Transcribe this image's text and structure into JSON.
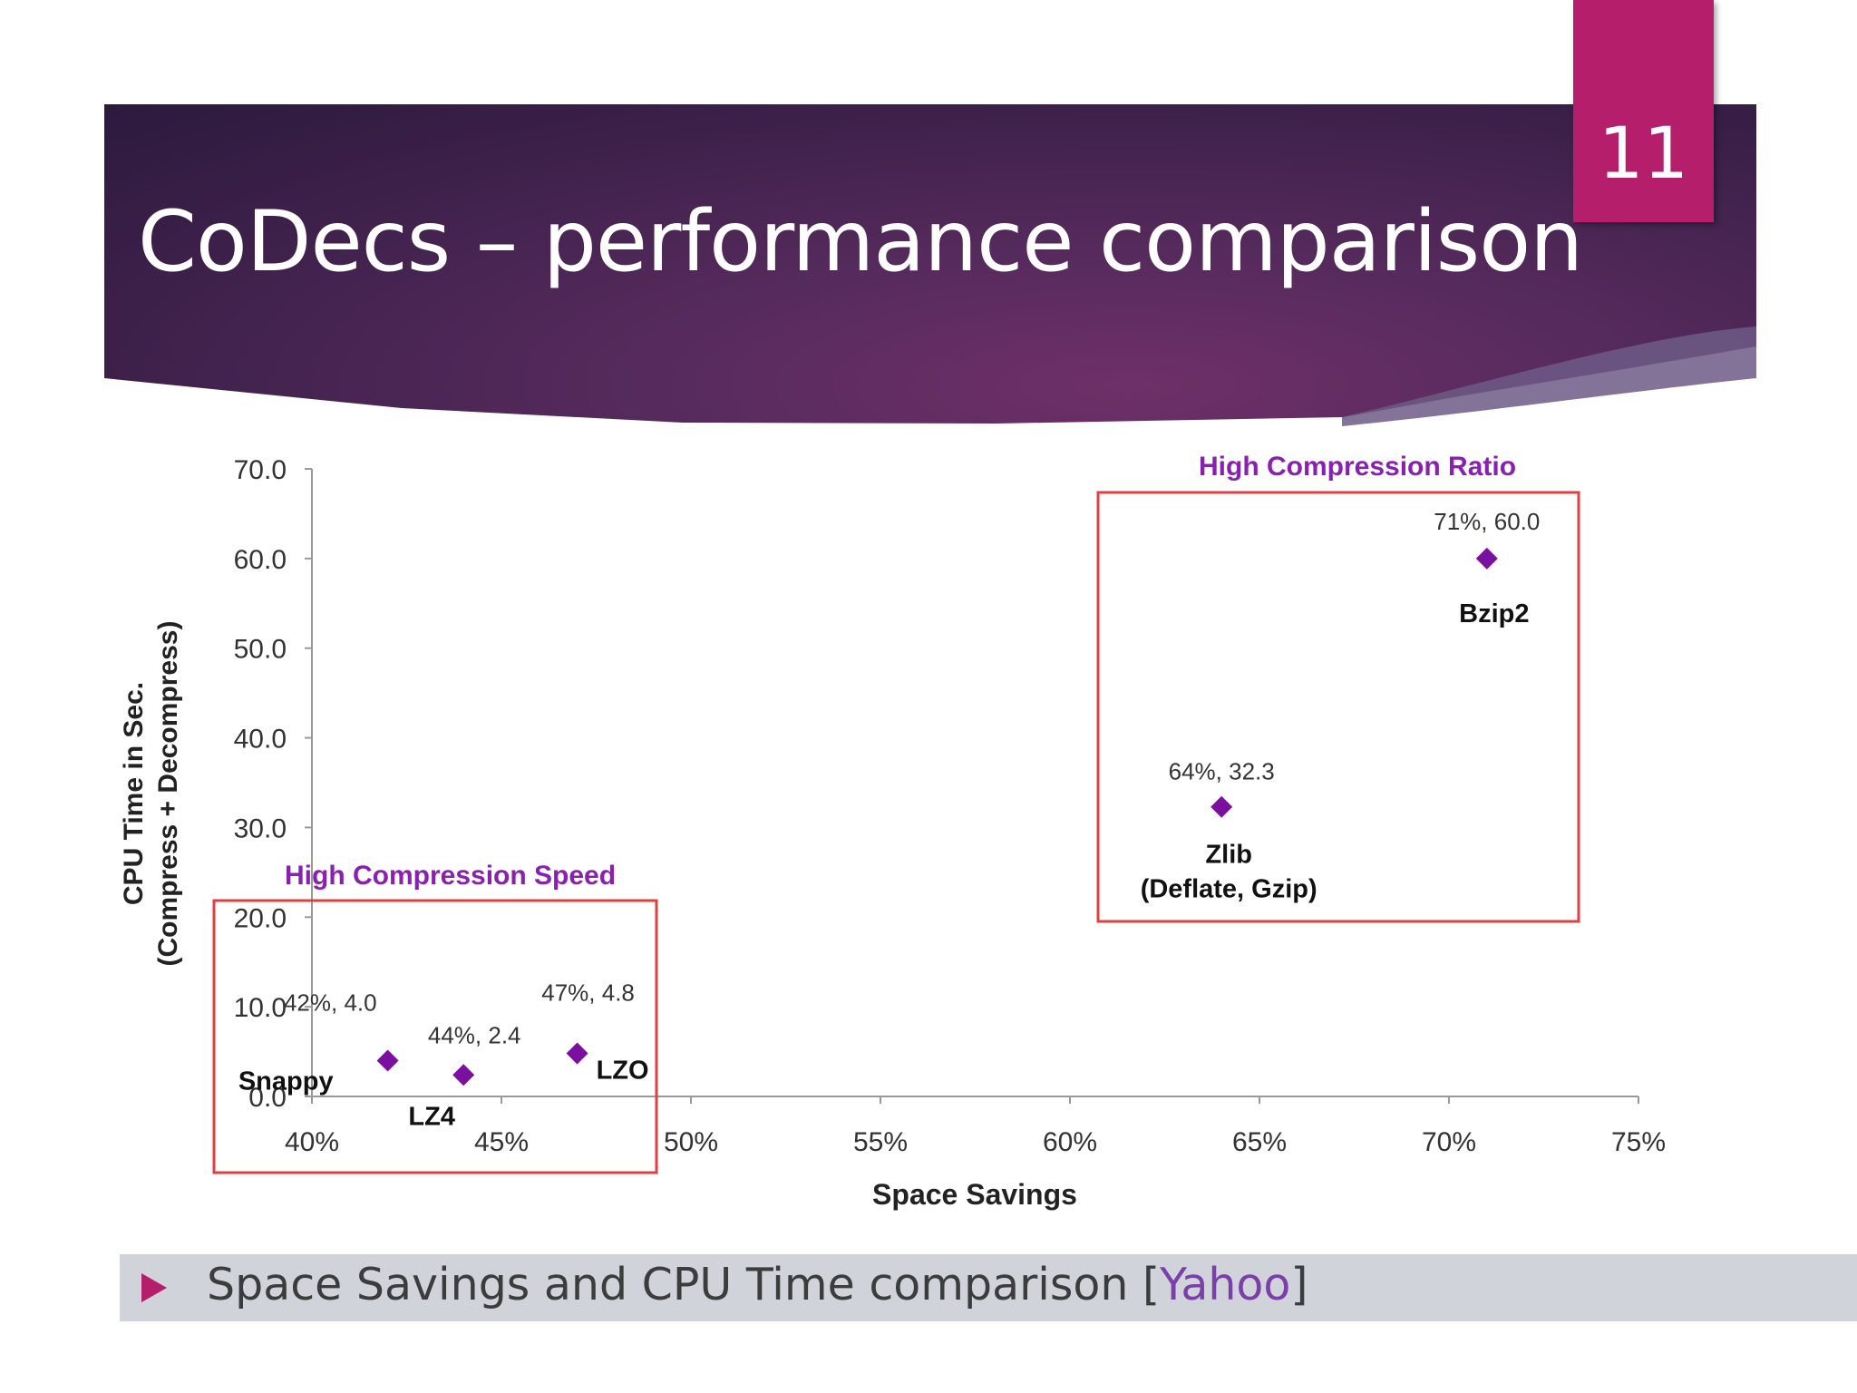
{
  "slide": {
    "title": "CoDecs – performance comparison",
    "number": "11"
  },
  "caption": {
    "text_before": "Space Savings and CPU Time comparison [",
    "link_text": "Yahoo",
    "text_after": "]"
  },
  "colors": {
    "accent": "#b41e6a",
    "banner": "#4a2456",
    "marker": "#7b0fa0",
    "box_border": "#e04040",
    "group_label": "#8a20b0",
    "link": "#7a3fa8"
  },
  "chart_data": {
    "type": "scatter",
    "xlabel": "Space Savings",
    "ylabel_line1": "CPU Time in Sec.",
    "ylabel_line2": "(Compress + Decompress)",
    "xlim": [
      40,
      75
    ],
    "ylim": [
      0,
      70
    ],
    "x_ticks": [
      40,
      45,
      50,
      55,
      60,
      65,
      70,
      75
    ],
    "x_tick_labels": [
      "40%",
      "45%",
      "50%",
      "55%",
      "60%",
      "65%",
      "70%",
      "75%"
    ],
    "y_ticks": [
      0,
      10,
      20,
      30,
      40,
      50,
      60,
      70
    ],
    "y_tick_labels": [
      "0.0",
      "10.0",
      "20.0",
      "30.0",
      "40.0",
      "50.0",
      "60.0",
      "70.0"
    ],
    "grid": false,
    "points": [
      {
        "name": "Snappy",
        "x": 42,
        "y": 4.0,
        "label": "42%, 4.0"
      },
      {
        "name": "LZ4",
        "x": 44,
        "y": 2.4,
        "label": "44%, 2.4"
      },
      {
        "name": "LZO",
        "x": 47,
        "y": 4.8,
        "label": "47%, 4.8"
      },
      {
        "name": "Zlib\n(Deflate, Gzip)",
        "x": 64,
        "y": 32.3,
        "label": "64%, 32.3"
      },
      {
        "name": "Bzip2",
        "x": 71,
        "y": 60.0,
        "label": "71%, 60.0"
      }
    ],
    "annotations": [
      {
        "text": "High Compression Speed"
      },
      {
        "text": "High Compression Ratio"
      }
    ]
  }
}
